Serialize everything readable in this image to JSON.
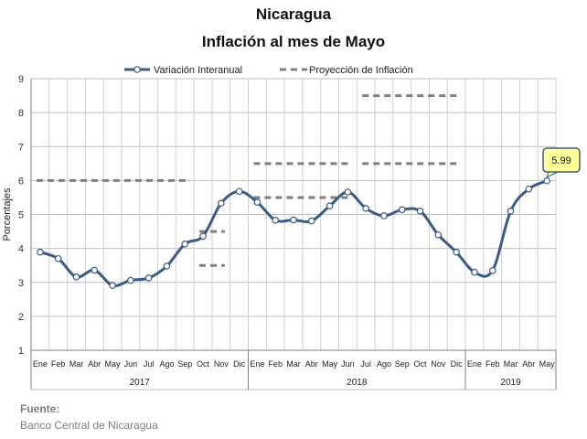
{
  "header": {
    "title": "Nicaragua",
    "subtitle": "Inflación al mes de Mayo"
  },
  "source": {
    "label": "Fuente:",
    "value": "Banco Central de Nicaragua"
  },
  "chart_data": {
    "type": "line",
    "ylabel": "Porcentajes",
    "ylim": [
      1,
      9
    ],
    "yticks": [
      1,
      2,
      3,
      4,
      5,
      6,
      7,
      8,
      9
    ],
    "grid": true,
    "legend_position": "top-center",
    "months": [
      "Ene",
      "Feb",
      "Mar",
      "Abr",
      "May",
      "Jun",
      "Jul",
      "Ago",
      "Sep",
      "Oct",
      "Nov",
      "Dic",
      "Ene",
      "Feb",
      "Mar",
      "Abr",
      "May",
      "Jun",
      "Jul",
      "Ago",
      "Sep",
      "Oct",
      "Nov",
      "Dic",
      "Ene",
      "Feb",
      "Mar",
      "Abr",
      "May"
    ],
    "years": [
      {
        "label": "2017",
        "start": 0,
        "end": 11
      },
      {
        "label": "2018",
        "start": 12,
        "end": 23
      },
      {
        "label": "2019",
        "start": 24,
        "end": 28
      }
    ],
    "series": [
      {
        "name": "Variación Interanual",
        "color": "#3b5b87",
        "values": [
          3.89,
          3.7,
          3.16,
          3.36,
          2.91,
          3.06,
          3.13,
          3.48,
          4.13,
          4.36,
          5.33,
          5.68,
          5.36,
          4.83,
          4.84,
          4.81,
          5.25,
          5.66,
          5.18,
          4.96,
          5.14,
          5.1,
          4.4,
          3.89,
          3.3,
          3.35,
          5.1,
          5.75,
          5.99
        ]
      }
    ],
    "projections": {
      "name": "Proyección de Inflación",
      "color": "#7f7f7f",
      "segments": [
        {
          "from": 0,
          "to": 8,
          "value": 6.0
        },
        {
          "from": 9,
          "to": 10,
          "value": 4.5
        },
        {
          "from": 9,
          "to": 10,
          "value": 3.5
        },
        {
          "from": 12,
          "to": 17,
          "value": 6.5
        },
        {
          "from": 12,
          "to": 17,
          "value": 5.5
        },
        {
          "from": 18,
          "to": 23,
          "value": 8.5
        },
        {
          "from": 18,
          "to": 23,
          "value": 6.5
        }
      ]
    },
    "annotation": {
      "index": 28,
      "text": "5.99",
      "fill": "#ffff99",
      "border": "#3b5b87"
    }
  }
}
